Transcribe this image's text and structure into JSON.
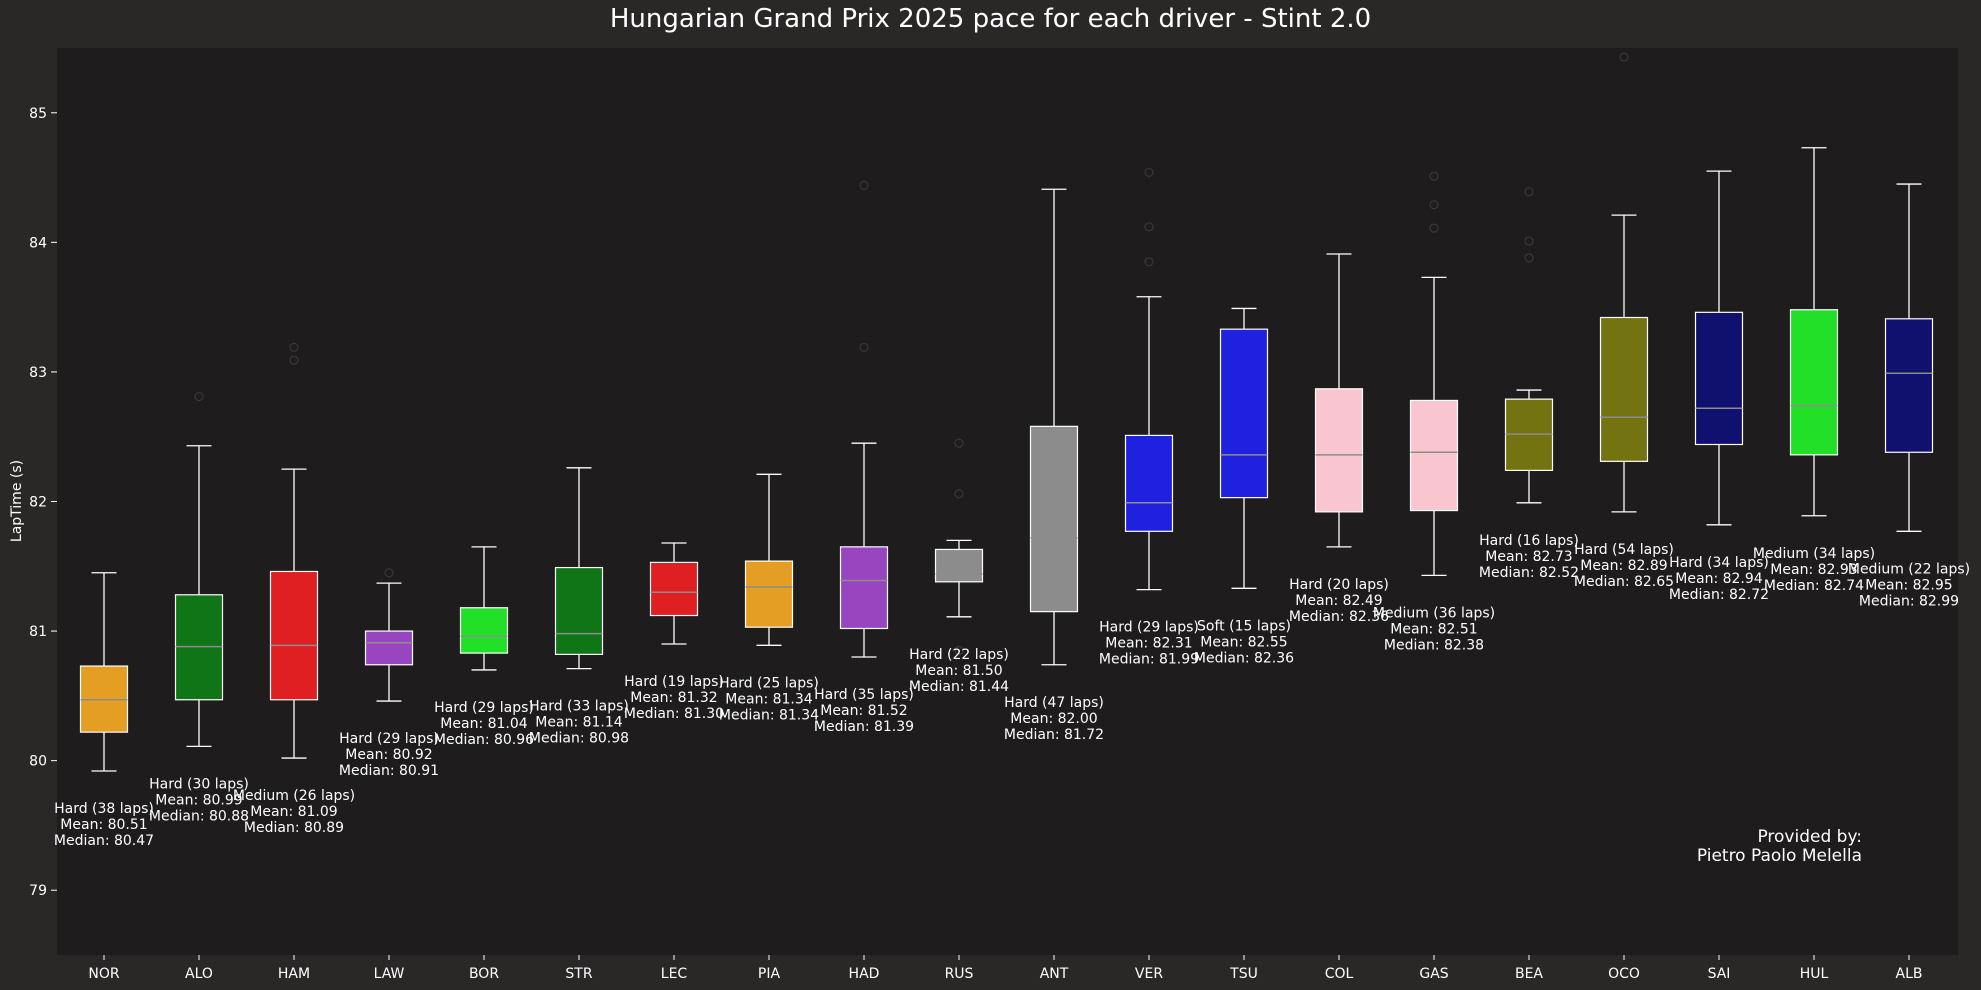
{
  "chart_data": {
    "type": "box",
    "title": "Hungarian Grand Prix 2025 pace for each driver - Stint 2.0",
    "ylabel": "LapTime (s)",
    "xlabel": "",
    "ylim": [
      78.5,
      85.5
    ],
    "yticks": [
      79,
      80,
      81,
      82,
      83,
      84,
      85
    ],
    "grid": false,
    "credit_line1": "Provided by:",
    "credit_line2": "Pietro Paolo Melella",
    "colors": {
      "background": "#2a2727",
      "plot_background": "#1e1c1c",
      "text": "#ffffff",
      "whisker": "#ffffff",
      "median": "#8c8c8c",
      "outlier": "#3a3838"
    },
    "drivers": [
      {
        "driver": "NOR",
        "color": "#e39e23",
        "compound": "Hard",
        "laps": 38,
        "mean": "80.51",
        "median_label": "80.47",
        "whislo": 79.92,
        "q1": 80.22,
        "med": 80.47,
        "q3": 80.73,
        "whishi": 81.45,
        "fliers": [],
        "label_line1": "Hard (38 laps)",
        "label_line2": "Mean: 80.51",
        "label_line3": "Median: 80.47"
      },
      {
        "driver": "ALO",
        "color": "#107516",
        "compound": "Hard",
        "laps": 30,
        "mean": "80.99",
        "median_label": "80.88",
        "whislo": 80.11,
        "q1": 80.47,
        "med": 80.88,
        "q3": 81.28,
        "whishi": 82.43,
        "fliers": [
          82.81
        ],
        "label_line1": "Hard (30 laps)",
        "label_line2": "Mean: 80.99",
        "label_line3": "Median: 80.88"
      },
      {
        "driver": "HAM",
        "color": "#e01f22",
        "compound": "Medium",
        "laps": 26,
        "mean": "81.09",
        "median_label": "80.89",
        "whislo": 80.02,
        "q1": 80.47,
        "med": 80.89,
        "q3": 81.46,
        "whishi": 82.25,
        "fliers": [
          83.09,
          83.19
        ],
        "label_line1": "Medium (26 laps)",
        "label_line2": "Mean: 81.09",
        "label_line3": "Median: 80.89"
      },
      {
        "driver": "LAW",
        "color": "#9945c0",
        "compound": "Hard",
        "laps": 29,
        "mean": "80.92",
        "median_label": "80.91",
        "whislo": 80.46,
        "q1": 80.74,
        "med": 80.91,
        "q3": 81.0,
        "whishi": 81.37,
        "fliers": [
          81.45
        ],
        "label_line1": "Hard (29 laps)",
        "label_line2": "Mean: 80.92",
        "label_line3": "Median: 80.91"
      },
      {
        "driver": "BOR",
        "color": "#22e028",
        "compound": "Hard",
        "laps": 29,
        "mean": "81.04",
        "median_label": "80.96",
        "whislo": 80.7,
        "q1": 80.83,
        "med": 80.96,
        "q3": 81.18,
        "whishi": 81.65,
        "fliers": [],
        "label_line1": "Hard (29 laps)",
        "label_line2": "Mean: 81.04",
        "label_line3": "Median: 80.96"
      },
      {
        "driver": "STR",
        "color": "#107516",
        "compound": "Hard",
        "laps": 33,
        "mean": "81.14",
        "median_label": "80.98",
        "whislo": 80.71,
        "q1": 80.82,
        "med": 80.98,
        "q3": 81.49,
        "whishi": 82.26,
        "fliers": [],
        "label_line1": "Hard (33 laps)",
        "label_line2": "Mean: 81.14",
        "label_line3": "Median: 80.98"
      },
      {
        "driver": "LEC",
        "color": "#e01f22",
        "compound": "Hard",
        "laps": 19,
        "mean": "81.32",
        "median_label": "81.30",
        "whislo": 80.9,
        "q1": 81.12,
        "med": 81.3,
        "q3": 81.53,
        "whishi": 81.68,
        "fliers": [],
        "label_line1": "Hard (19 laps)",
        "label_line2": "Mean: 81.32",
        "label_line3": "Median: 81.30"
      },
      {
        "driver": "PIA",
        "color": "#e39e23",
        "compound": "Hard",
        "laps": 25,
        "mean": "81.34",
        "median_label": "81.34",
        "whislo": 80.89,
        "q1": 81.03,
        "med": 81.34,
        "q3": 81.54,
        "whishi": 82.21,
        "fliers": [],
        "label_line1": "Hard (25 laps)",
        "label_line2": "Mean: 81.34",
        "label_line3": "Median: 81.34"
      },
      {
        "driver": "HAD",
        "color": "#9945c0",
        "compound": "Hard",
        "laps": 35,
        "mean": "81.52",
        "median_label": "81.39",
        "whislo": 80.8,
        "q1": 81.02,
        "med": 81.39,
        "q3": 81.65,
        "whishi": 82.45,
        "fliers": [
          83.19,
          84.44
        ],
        "label_line1": "Hard (35 laps)",
        "label_line2": "Mean: 81.52",
        "label_line3": "Median: 81.39"
      },
      {
        "driver": "RUS",
        "color": "#8c8c8c",
        "compound": "Hard",
        "laps": 22,
        "mean": "81.50",
        "median_label": "81.44",
        "whislo": 81.11,
        "q1": 81.38,
        "med": 81.44,
        "q3": 81.63,
        "whishi": 81.7,
        "fliers": [
          80.85,
          82.06,
          82.45
        ],
        "label_line1": "Hard (22 laps)",
        "label_line2": "Mean: 81.50",
        "label_line3": "Median: 81.44"
      },
      {
        "driver": "ANT",
        "color": "#8c8c8c",
        "compound": "Hard",
        "laps": 47,
        "mean": "82.00",
        "median_label": "81.72",
        "whislo": 80.74,
        "q1": 81.15,
        "med": 81.72,
        "q3": 82.58,
        "whishi": 84.41,
        "fliers": [],
        "label_line1": "Hard (47 laps)",
        "label_line2": "Mean: 82.00",
        "label_line3": "Median: 81.72"
      },
      {
        "driver": "VER",
        "color": "#2020e0",
        "compound": "Hard",
        "laps": 29,
        "mean": "82.31",
        "median_label": "81.99",
        "whislo": 81.32,
        "q1": 81.77,
        "med": 81.99,
        "q3": 82.51,
        "whishi": 83.58,
        "fliers": [
          83.85,
          84.12,
          84.54
        ],
        "label_line1": "Hard (29 laps)",
        "label_line2": "Mean: 82.31",
        "label_line3": "Median: 81.99"
      },
      {
        "driver": "TSU",
        "color": "#2020e0",
        "compound": "Soft",
        "laps": 15,
        "mean": "82.55",
        "median_label": "82.36",
        "whislo": 81.33,
        "q1": 82.03,
        "med": 82.36,
        "q3": 83.33,
        "whishi": 83.49,
        "fliers": [],
        "label_line1": "Soft (15 laps)",
        "label_line2": "Mean: 82.55",
        "label_line3": "Median: 82.36"
      },
      {
        "driver": "COL",
        "color": "#f9c6d0",
        "compound": "Hard",
        "laps": 20,
        "mean": "82.49",
        "median_label": "82.36",
        "whislo": 81.65,
        "q1": 81.92,
        "med": 82.36,
        "q3": 82.87,
        "whishi": 83.91,
        "fliers": [],
        "label_line1": "Hard (20 laps)",
        "label_line2": "Mean: 82.49",
        "label_line3": "Median: 82.36"
      },
      {
        "driver": "GAS",
        "color": "#f9c6d0",
        "compound": "Medium",
        "laps": 36,
        "mean": "82.51",
        "median_label": "82.38",
        "whislo": 81.43,
        "q1": 81.93,
        "med": 82.38,
        "q3": 82.78,
        "whishi": 83.73,
        "fliers": [
          84.11,
          84.29,
          84.51
        ],
        "label_line1": "Medium (36 laps)",
        "label_line2": "Mean: 82.51",
        "label_line3": "Median: 82.38"
      },
      {
        "driver": "BEA",
        "color": "#737312",
        "compound": "Hard",
        "laps": 16,
        "mean": "82.73",
        "median_label": "82.52",
        "whislo": 81.99,
        "q1": 82.24,
        "med": 82.52,
        "q3": 82.79,
        "whishi": 82.86,
        "fliers": [
          83.88,
          84.01,
          84.39
        ],
        "label_line1": "Hard (16 laps)",
        "label_line2": "Mean: 82.73",
        "label_line3": "Median: 82.52"
      },
      {
        "driver": "OCO",
        "color": "#737312",
        "compound": "Hard",
        "laps": 54,
        "mean": "82.89",
        "median_label": "82.65",
        "whislo": 81.92,
        "q1": 82.31,
        "med": 82.65,
        "q3": 83.42,
        "whishi": 84.21,
        "fliers": [
          85.43
        ],
        "label_line1": "Hard (54 laps)",
        "label_line2": "Mean: 82.89",
        "label_line3": "Median: 82.65"
      },
      {
        "driver": "SAI",
        "color": "#10106e",
        "compound": "Hard",
        "laps": 34,
        "mean": "82.94",
        "median_label": "82.72",
        "whislo": 81.82,
        "q1": 82.44,
        "med": 82.72,
        "q3": 83.46,
        "whishi": 84.55,
        "fliers": [],
        "label_line1": "Hard (34 laps)",
        "label_line2": "Mean: 82.94",
        "label_line3": "Median: 82.72"
      },
      {
        "driver": "HUL",
        "color": "#22e028",
        "compound": "Medium",
        "laps": 34,
        "mean": "82.93",
        "median_label": "82.74",
        "whislo": 81.89,
        "q1": 82.36,
        "med": 82.74,
        "q3": 83.48,
        "whishi": 84.73,
        "fliers": [],
        "label_line1": "Medium (34 laps)",
        "label_line2": "Mean: 82.93",
        "label_line3": "Median: 82.74"
      },
      {
        "driver": "ALB",
        "color": "#10106e",
        "compound": "Medium",
        "laps": 22,
        "mean": "82.95",
        "median_label": "82.99",
        "whislo": 81.77,
        "q1": 82.38,
        "med": 82.99,
        "q3": 83.41,
        "whishi": 84.45,
        "fliers": [],
        "label_line1": "Medium (22 laps)",
        "label_line2": "Mean: 82.95",
        "label_line3": "Median: 82.99"
      }
    ]
  }
}
